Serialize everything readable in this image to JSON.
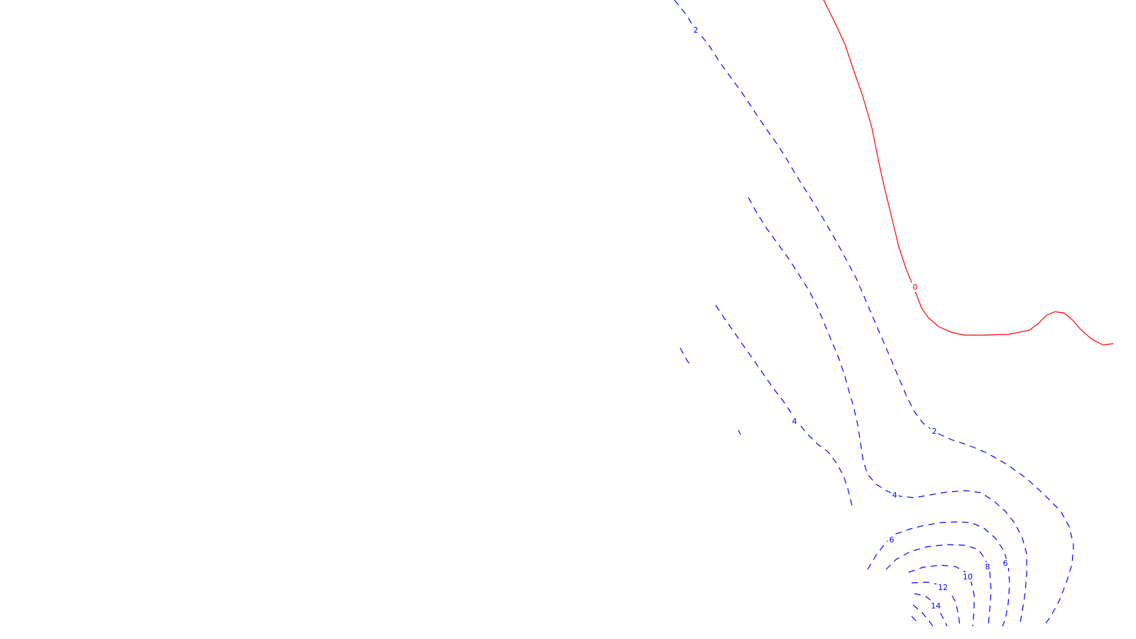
{
  "chart_data": {
    "type": "contour",
    "title": "",
    "xlabel": "",
    "ylabel": "",
    "grid": false,
    "legend": "none",
    "colors": {
      "zero": "#ff0000",
      "positive": "#0000ff",
      "background": "#ffffff"
    },
    "levels": [
      {
        "level": 0,
        "label": "0",
        "style": "solid",
        "color": "#ff0000"
      },
      {
        "level": 2,
        "label": "2",
        "style": "dashed",
        "color": "#0000ff"
      },
      {
        "level": 4,
        "label": "4",
        "style": "dashed",
        "color": "#0000ff"
      },
      {
        "level": 6,
        "label": "6",
        "style": "dashed",
        "color": "#0000ff"
      },
      {
        "level": 8,
        "label": "8",
        "style": "dashed",
        "color": "#0000ff"
      },
      {
        "level": 10,
        "label": "10",
        "style": "dashed",
        "color": "#0000ff"
      },
      {
        "level": 12,
        "label": "12",
        "style": "dashed",
        "color": "#0000ff"
      },
      {
        "level": 14,
        "label": "14",
        "style": "dashed",
        "color": "#0000ff"
      }
    ]
  }
}
